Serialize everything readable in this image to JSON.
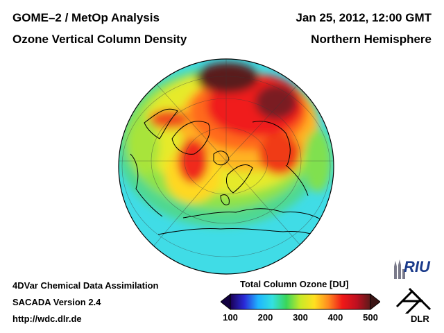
{
  "header": {
    "title_line1": "GOME–2 / MetOp Analysis",
    "title_line2": "Ozone Vertical Column Density",
    "date": "Jan 25, 2012, 12:00 GMT",
    "region": "Northern Hemisphere"
  },
  "footer": {
    "line1": "4DVar Chemical Data Assimilation",
    "line2": "SACADA Version 2.4",
    "line3": "http://wdc.dlr.de"
  },
  "legend": {
    "title": "Total Column Ozone [DU]",
    "ticks": [
      "100",
      "200",
      "300",
      "400",
      "500"
    ],
    "range": [
      100,
      500
    ],
    "colors": [
      "#1a0055",
      "#2a2ad8",
      "#1fb6ff",
      "#33e0e0",
      "#3ad65a",
      "#c8ea28",
      "#ffe020",
      "#ff8a20",
      "#f01818",
      "#c01020",
      "#5a1a1a"
    ]
  },
  "map": {
    "projection": "orthographic",
    "ocean_color": "#40dce6",
    "coastline_color": "#000000"
  },
  "logos": {
    "riu": "RIU",
    "dlr": "DLR",
    "riu_icon": "cathedral-icon",
    "dlr_icon": "dlr-cross-icon"
  }
}
